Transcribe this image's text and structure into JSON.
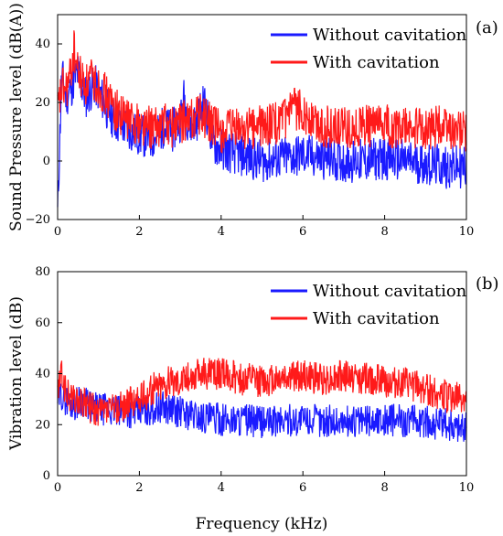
{
  "chart_data": [
    {
      "type": "line",
      "panel_label": "(a)",
      "ylabel": "Sound Pressure level (dB(A))",
      "xlabel": "",
      "xlim": [
        0,
        10
      ],
      "ylim": [
        -20,
        50
      ],
      "xticks": [
        "0",
        "2",
        "4",
        "6",
        "8",
        "10"
      ],
      "yticks": [
        "−20",
        "0",
        "20",
        "40"
      ],
      "ytick_values": [
        -20,
        0,
        20,
        40
      ],
      "legend_position": "top-right",
      "grid": false,
      "series": [
        {
          "name": "Without cavitation",
          "color": "#1a1aff",
          "x": [
            0,
            0.1,
            0.2,
            0.3,
            0.4,
            0.5,
            0.6,
            0.7,
            0.8,
            0.9,
            1.0,
            1.2,
            1.4,
            1.6,
            1.8,
            2.0,
            2.2,
            2.4,
            2.6,
            2.8,
            3.0,
            3.1,
            3.2,
            3.4,
            3.6,
            3.8,
            4.0,
            4.5,
            5.0,
            5.5,
            6.0,
            6.5,
            7.0,
            7.5,
            8.0,
            8.5,
            9.0,
            9.5,
            10.0
          ],
          "y": [
            -18,
            30,
            22,
            24,
            28,
            30,
            25,
            22,
            24,
            26,
            24,
            18,
            14,
            12,
            10,
            9,
            8,
            8,
            12,
            10,
            14,
            22,
            12,
            14,
            20,
            6,
            4,
            2,
            0,
            1,
            2,
            1,
            0,
            0,
            1,
            0,
            -1,
            -2,
            -2
          ]
        },
        {
          "name": "With cavitation",
          "color": "#ff1a1a",
          "x": [
            0,
            0.1,
            0.2,
            0.3,
            0.4,
            0.5,
            0.6,
            0.7,
            0.8,
            0.9,
            1.0,
            1.2,
            1.4,
            1.6,
            1.8,
            2.0,
            2.2,
            2.4,
            2.6,
            2.8,
            3.0,
            3.2,
            3.4,
            3.6,
            3.8,
            4.0,
            4.5,
            5.0,
            5.5,
            5.8,
            6.0,
            6.2,
            6.5,
            7.0,
            7.5,
            8.0,
            8.5,
            9.0,
            9.5,
            10.0
          ],
          "y": [
            16,
            25,
            24,
            28,
            38,
            30,
            28,
            26,
            28,
            27,
            26,
            22,
            18,
            15,
            14,
            13,
            12,
            11,
            13,
            12,
            13,
            14,
            16,
            15,
            12,
            10,
            11,
            12,
            13,
            18,
            17,
            14,
            12,
            11,
            12,
            12,
            11,
            11,
            12,
            10
          ]
        }
      ]
    },
    {
      "type": "line",
      "panel_label": "(b)",
      "ylabel": "Vibration level (dB)",
      "xlabel": "Frequency (kHz)",
      "xlim": [
        0,
        10
      ],
      "ylim": [
        0,
        80
      ],
      "xticks": [
        "0",
        "2",
        "4",
        "6",
        "8",
        "10"
      ],
      "yticks": [
        "0",
        "20",
        "40",
        "60",
        "80"
      ],
      "ytick_values": [
        0,
        20,
        40,
        60,
        80
      ],
      "legend_position": "top-right",
      "grid": false,
      "series": [
        {
          "name": "Without cavitation",
          "color": "#1a1aff",
          "x": [
            0,
            0.1,
            0.2,
            0.4,
            0.6,
            0.8,
            1.0,
            1.2,
            1.5,
            2.0,
            2.5,
            2.8,
            3.0,
            3.5,
            4.0,
            4.5,
            5.0,
            6.0,
            7.0,
            8.0,
            9.0,
            9.5,
            10.0
          ],
          "y": [
            30,
            32,
            30,
            28,
            30,
            27,
            26,
            26,
            25,
            25,
            27,
            26,
            25,
            23,
            22,
            22,
            21,
            22,
            21,
            22,
            21,
            20,
            19
          ]
        },
        {
          "name": "With cavitation",
          "color": "#ff1a1a",
          "x": [
            0,
            0.1,
            0.2,
            0.4,
            0.6,
            0.8,
            1.0,
            1.2,
            1.5,
            2.0,
            2.5,
            3.0,
            3.5,
            4.0,
            4.5,
            5.0,
            5.5,
            6.0,
            6.5,
            7.0,
            7.5,
            8.0,
            8.5,
            9.0,
            9.5,
            10.0
          ],
          "y": [
            33,
            40,
            32,
            30,
            28,
            27,
            24,
            25,
            27,
            30,
            36,
            38,
            40,
            40,
            38,
            37,
            39,
            39,
            38,
            39,
            38,
            37,
            36,
            34,
            31,
            30
          ]
        }
      ]
    }
  ]
}
